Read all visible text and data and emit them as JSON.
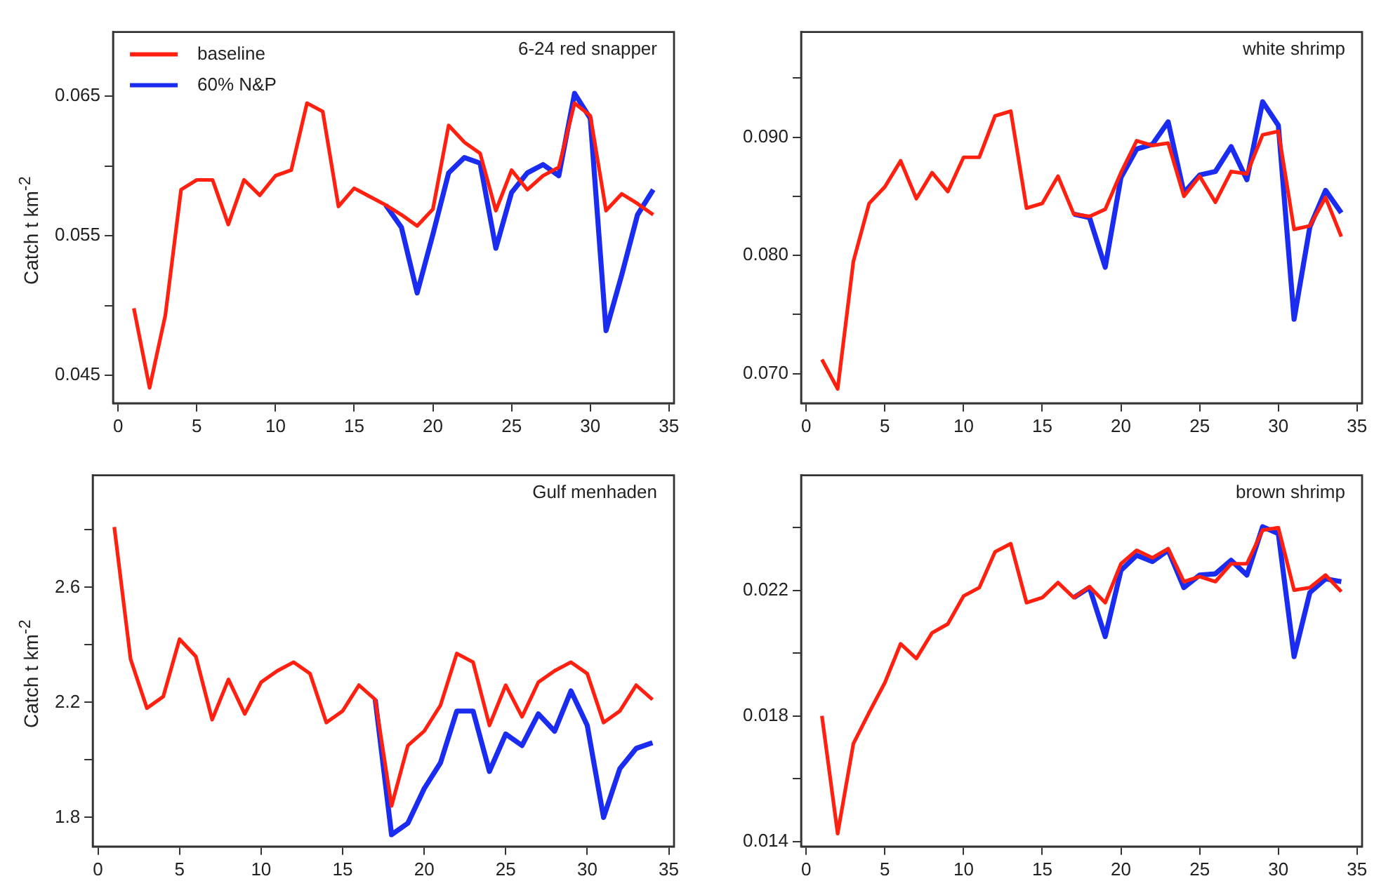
{
  "chart_data": [
    {
      "type": "line",
      "title": "6-24 red snapper",
      "ylabel": "Catch t km$^{-2}$",
      "legend": "top left",
      "x": [
        1,
        2,
        3,
        4,
        5,
        6,
        7,
        8,
        9,
        10,
        11,
        12,
        13,
        14,
        15,
        16,
        17,
        18,
        19,
        20,
        21,
        22,
        23,
        24,
        25,
        26,
        27,
        28,
        29,
        30,
        31,
        32,
        33,
        34
      ],
      "xlim": [
        -0.32,
        35.32
      ],
      "xticks": [
        0,
        5,
        10,
        15,
        20,
        25,
        30,
        35
      ],
      "ylim": [
        0.043,
        0.0696
      ],
      "yticks": [
        0.045,
        {
          "value": 0.05,
          "label": null
        },
        0.055,
        {
          "value": 0.06,
          "label": null
        },
        0.065
      ],
      "series": [
        {
          "name": "baseline",
          "color": "#ff2010",
          "values": [
            0.0498,
            0.0441,
            0.0493,
            0.0583,
            0.059,
            0.059,
            0.0558,
            0.059,
            0.0579,
            0.0593,
            0.0597,
            0.0645,
            0.0639,
            0.0571,
            0.0584,
            0.0578,
            0.0572,
            0.0565,
            0.0557,
            0.0569,
            0.0629,
            0.0617,
            0.0609,
            0.0568,
            0.0597,
            0.0583,
            0.0593,
            0.0599,
            0.0645,
            0.0636,
            0.0568,
            0.058,
            0.0573,
            0.0565
          ]
        },
        {
          "name": "60% N&P",
          "color": "#1a2cf0",
          "values": [
            null,
            null,
            null,
            null,
            null,
            null,
            null,
            null,
            null,
            null,
            null,
            null,
            null,
            null,
            null,
            null,
            0.0572,
            0.0556,
            0.0509,
            0.0551,
            0.0595,
            0.0606,
            0.0602,
            0.0541,
            0.0581,
            0.0595,
            0.0601,
            0.0593,
            0.0652,
            0.0634,
            0.0482,
            0.0522,
            0.0565,
            0.0583
          ]
        }
      ]
    },
    {
      "type": "line",
      "title": "white shrimp",
      "x": [
        1,
        2,
        3,
        4,
        5,
        6,
        7,
        8,
        9,
        10,
        11,
        12,
        13,
        14,
        15,
        16,
        17,
        18,
        19,
        20,
        21,
        22,
        23,
        24,
        25,
        26,
        27,
        28,
        29,
        30,
        31,
        32,
        33,
        34
      ],
      "xlim": [
        -0.32,
        35.32
      ],
      "xticks": [
        0,
        5,
        10,
        15,
        20,
        25,
        30,
        35
      ],
      "ylim": [
        0.0675,
        0.0989
      ],
      "yticks": [
        {
          "value": 0.07,
          "label": "0.070"
        },
        {
          "value": 0.075,
          "label": null
        },
        {
          "value": 0.08,
          "label": "0.080"
        },
        {
          "value": 0.085,
          "label": null
        },
        {
          "value": 0.09,
          "label": "0.090"
        },
        {
          "value": 0.095,
          "label": null
        }
      ],
      "series": [
        {
          "color": "#ff2010",
          "values": [
            0.0712,
            0.0687,
            0.0795,
            0.0844,
            0.0858,
            0.088,
            0.0848,
            0.087,
            0.0854,
            0.0883,
            0.0883,
            0.0918,
            0.0922,
            0.084,
            0.0844,
            0.0867,
            0.0835,
            0.0833,
            0.0839,
            0.087,
            0.0897,
            0.0893,
            0.0895,
            0.085,
            0.0867,
            0.0845,
            0.0871,
            0.0869,
            0.0902,
            0.0905,
            0.0822,
            0.0825,
            0.0849,
            0.0816
          ]
        },
        {
          "color": "#1a2cf0",
          "values": [
            null,
            null,
            null,
            null,
            null,
            null,
            null,
            null,
            null,
            null,
            null,
            null,
            null,
            null,
            null,
            null,
            0.0835,
            0.0832,
            0.079,
            0.0866,
            0.089,
            0.0894,
            0.0913,
            0.0853,
            0.0868,
            0.0871,
            0.0892,
            0.0864,
            0.093,
            0.091,
            0.0746,
            0.0824,
            0.0855,
            0.0836
          ]
        }
      ]
    },
    {
      "type": "line",
      "title": "Gulf menhaden",
      "ylabel": "Catch t km$^{-2}$",
      "x": [
        1,
        2,
        3,
        4,
        5,
        6,
        7,
        8,
        9,
        10,
        11,
        12,
        13,
        14,
        15,
        16,
        17,
        18,
        19,
        20,
        21,
        22,
        23,
        24,
        25,
        26,
        27,
        28,
        29,
        30,
        31,
        32,
        33,
        34
      ],
      "xlim": [
        -0.32,
        35.32
      ],
      "xticks": [
        0,
        5,
        10,
        15,
        20,
        25,
        30,
        35
      ],
      "ylim": [
        1.699,
        2.99
      ],
      "yticks": [
        1.8,
        {
          "value": 2.0,
          "label": null
        },
        2.2,
        {
          "value": 2.4,
          "label": null
        },
        2.6,
        {
          "value": 2.8,
          "label": null
        }
      ],
      "series": [
        {
          "color": "#ff2010",
          "values": [
            2.81,
            2.35,
            2.18,
            2.22,
            2.42,
            2.36,
            2.14,
            2.28,
            2.16,
            2.27,
            2.31,
            2.34,
            2.3,
            2.13,
            2.17,
            2.26,
            2.21,
            1.84,
            2.05,
            2.1,
            2.19,
            2.37,
            2.34,
            2.12,
            2.26,
            2.15,
            2.27,
            2.31,
            2.34,
            2.3,
            2.13,
            2.17,
            2.26,
            2.21
          ]
        },
        {
          "color": "#1a2cf0",
          "values": [
            null,
            null,
            null,
            null,
            null,
            null,
            null,
            null,
            null,
            null,
            null,
            null,
            null,
            null,
            null,
            null,
            2.21,
            1.74,
            1.78,
            1.9,
            1.99,
            2.17,
            2.17,
            1.96,
            2.09,
            2.05,
            2.16,
            2.1,
            2.24,
            2.12,
            1.8,
            1.97,
            2.04,
            2.06
          ]
        }
      ]
    },
    {
      "type": "line",
      "title": "brown shrimp",
      "x": [
        1,
        2,
        3,
        4,
        5,
        6,
        7,
        8,
        9,
        10,
        11,
        12,
        13,
        14,
        15,
        16,
        17,
        18,
        19,
        20,
        21,
        22,
        23,
        24,
        25,
        26,
        27,
        28,
        29,
        30,
        31,
        32,
        33,
        34
      ],
      "xlim": [
        -0.32,
        35.32
      ],
      "xticks": [
        0,
        5,
        10,
        15,
        20,
        25,
        30,
        35
      ],
      "ylim": [
        0.01384,
        0.02567
      ],
      "yticks": [
        0.014,
        {
          "value": 0.016,
          "label": null
        },
        0.018,
        {
          "value": 0.02,
          "label": null
        },
        0.022,
        {
          "value": 0.024,
          "label": null
        }
      ],
      "series": [
        {
          "color": "#ff2010",
          "values": [
            0.018,
            0.01425,
            0.01712,
            0.01811,
            0.01906,
            0.0203,
            0.01983,
            0.02065,
            0.02093,
            0.02182,
            0.02209,
            0.02323,
            0.02349,
            0.02161,
            0.02177,
            0.02225,
            0.02177,
            0.02212,
            0.02161,
            0.02285,
            0.02328,
            0.02304,
            0.02333,
            0.02228,
            0.02244,
            0.02228,
            0.02285,
            0.02285,
            0.02392,
            0.024,
            0.02201,
            0.02209,
            0.02249,
            0.02196
          ]
        },
        {
          "color": "#1a2cf0",
          "values": [
            null,
            null,
            null,
            null,
            null,
            null,
            null,
            null,
            null,
            null,
            null,
            null,
            null,
            null,
            null,
            null,
            0.02177,
            0.02209,
            0.02053,
            0.02264,
            0.02312,
            0.02292,
            0.02328,
            0.02209,
            0.02249,
            0.02253,
            0.02296,
            0.02249,
            0.02403,
            0.02381,
            0.01989,
            0.02193,
            0.02237,
            0.02228
          ]
        }
      ]
    }
  ]
}
